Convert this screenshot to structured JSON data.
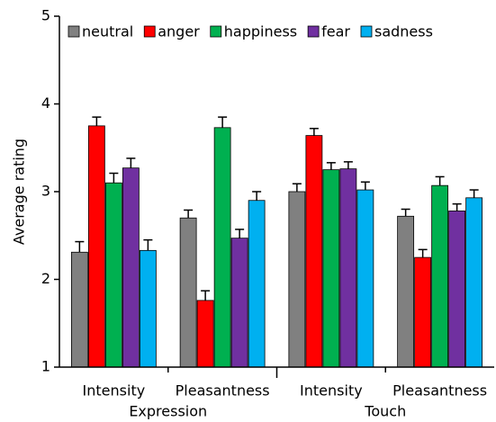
{
  "chart_data": {
    "type": "bar",
    "ylabel": "Average rating",
    "categories": [
      "Intensity",
      "Pleasantness",
      "Intensity",
      "Pleasantness"
    ],
    "group_labels": [
      "Expression",
      "Touch"
    ],
    "series": [
      {
        "name": "neutral",
        "color": "#808080",
        "values": [
          2.31,
          2.7,
          3.0,
          2.72
        ],
        "errors": [
          0.12,
          0.09,
          0.09,
          0.08
        ]
      },
      {
        "name": "anger",
        "color": "#ff0000",
        "values": [
          3.75,
          1.76,
          3.64,
          2.25
        ],
        "errors": [
          0.1,
          0.11,
          0.08,
          0.09
        ]
      },
      {
        "name": "happiness",
        "color": "#00b050",
        "values": [
          3.1,
          3.73,
          3.25,
          3.07
        ],
        "errors": [
          0.11,
          0.12,
          0.08,
          0.1
        ]
      },
      {
        "name": "fear",
        "color": "#7030a0",
        "values": [
          3.27,
          2.47,
          3.26,
          2.78
        ],
        "errors": [
          0.11,
          0.1,
          0.08,
          0.08
        ]
      },
      {
        "name": "sadness",
        "color": "#00b0f0",
        "values": [
          2.33,
          2.9,
          3.02,
          2.93
        ],
        "errors": [
          0.12,
          0.1,
          0.09,
          0.09
        ]
      }
    ],
    "ylim": [
      1,
      5
    ],
    "yticks": [
      1,
      2,
      3,
      4,
      5
    ]
  }
}
